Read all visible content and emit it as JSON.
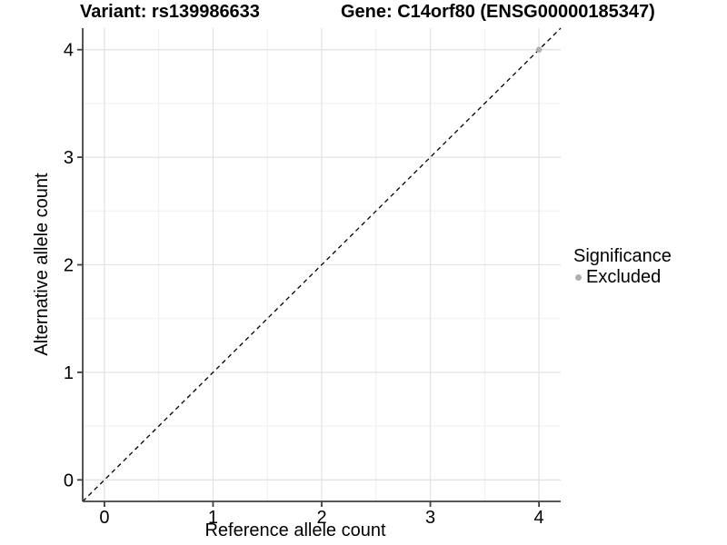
{
  "titles": {
    "variant": "Variant: rs139986633",
    "gene": "Gene: C14orf80 (ENSG00000185347)"
  },
  "chart_data": {
    "type": "scatter",
    "title_left": "Variant: rs139986633",
    "title_right": "Gene: C14orf80 (ENSG00000185347)",
    "xlabel": "Reference allele count",
    "ylabel": "Alternative allele count",
    "xlim": [
      -0.2,
      4.2
    ],
    "ylim": [
      -0.2,
      4.2
    ],
    "xticks": [
      0,
      1,
      2,
      3,
      4
    ],
    "yticks": [
      0,
      1,
      2,
      3,
      4
    ],
    "xminor": [
      0.5,
      1.5,
      2.5,
      3.5
    ],
    "yminor": [
      0.5,
      1.5,
      2.5,
      3.5
    ],
    "grid": true,
    "series": [
      {
        "name": "Excluded",
        "color": "#b0b0b0",
        "points": [
          {
            "x": 4,
            "y": 4
          }
        ]
      }
    ],
    "identity_line": {
      "style": "dashed",
      "from": [
        -0.2,
        -0.2
      ],
      "to": [
        4.2,
        4.2
      ],
      "color": "#000000"
    },
    "legend": {
      "title": "Significance",
      "position": "right",
      "items": [
        {
          "label": "Excluded",
          "color": "#b0b0b0"
        }
      ]
    },
    "colors": {
      "grid_major": "#e3e3e3",
      "grid_minor": "#efefef",
      "axis_line": "#404040",
      "tick_text": "#000000",
      "point": "#b0b0b0",
      "abline": "#000000"
    }
  }
}
